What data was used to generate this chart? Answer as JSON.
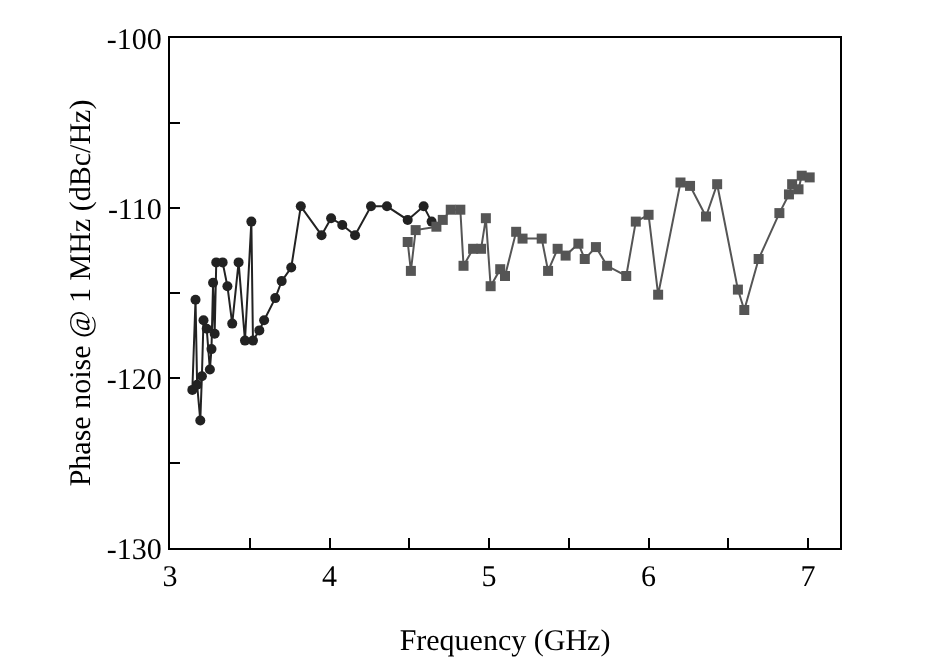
{
  "chart_data": {
    "type": "line",
    "xlabel": "Frequency (GHz)",
    "ylabel": "Phase noise @ 1 MHz (dBc/Hz)",
    "xlim": [
      3,
      7.2
    ],
    "xticks": [
      3,
      {
        "value": 3.5,
        "label": null
      },
      4,
      {
        "value": 4.5,
        "label": null
      },
      5,
      {
        "value": 5.5,
        "label": null
      },
      6,
      {
        "value": 6.5,
        "label": null
      },
      7
    ],
    "ylim": [
      -130,
      -100
    ],
    "yticks": [
      -130,
      {
        "value": -125,
        "label": null
      },
      -120,
      {
        "value": -115,
        "label": null
      },
      -110,
      {
        "value": -105,
        "label": null
      },
      -100
    ],
    "grid": false,
    "line_style": "solid",
    "series": [
      {
        "color": "#222222",
        "marker": "circle",
        "x": [
          3.14,
          3.16,
          3.17,
          3.19,
          3.2,
          3.21,
          3.23,
          3.25,
          3.26,
          3.27,
          3.28,
          3.29,
          3.33,
          3.36,
          3.39,
          3.43,
          3.47,
          3.51,
          3.52,
          3.56,
          3.59,
          3.66,
          3.7,
          3.76,
          3.82,
          3.95,
          4.01,
          4.08,
          4.16,
          4.26,
          4.36,
          4.49,
          4.59,
          4.64
        ],
        "values": [
          -120.7,
          -115.4,
          -120.4,
          -122.5,
          -119.9,
          -116.6,
          -117.1,
          -119.5,
          -118.3,
          -114.4,
          -117.4,
          -113.2,
          -113.2,
          -114.6,
          -116.8,
          -113.2,
          -117.8,
          -110.8,
          -117.8,
          -117.2,
          -116.6,
          -115.3,
          -114.3,
          -113.5,
          -109.9,
          -111.6,
          -110.6,
          -111.0,
          -111.6,
          -109.9,
          -109.9,
          -110.7,
          -109.9,
          -110.8
        ]
      },
      {
        "color": "#555555",
        "marker": "square",
        "x": [
          4.49,
          4.51,
          4.54,
          4.67,
          4.71,
          4.76,
          4.82,
          4.84,
          4.9,
          4.95,
          4.98,
          5.01,
          5.07,
          5.1,
          5.17,
          5.21,
          5.33,
          5.37,
          5.43,
          5.48,
          5.56,
          5.6,
          5.67,
          5.74,
          5.86,
          5.92,
          6.0,
          6.06,
          6.2,
          6.26,
          6.36,
          6.43,
          6.56,
          6.6,
          6.69,
          6.82,
          6.88,
          6.9,
          6.94,
          6.96,
          7.01
        ],
        "values": [
          -112.0,
          -113.7,
          -111.3,
          -111.1,
          -110.7,
          -110.1,
          -110.1,
          -113.4,
          -112.4,
          -112.4,
          -110.6,
          -114.6,
          -113.6,
          -114.0,
          -111.4,
          -111.8,
          -111.8,
          -113.7,
          -112.4,
          -112.8,
          -112.1,
          -113.0,
          -112.3,
          -113.4,
          -114.0,
          -110.8,
          -110.4,
          -115.1,
          -108.5,
          -108.7,
          -110.5,
          -108.6,
          -114.8,
          -116.0,
          -113.0,
          -110.3,
          -109.2,
          -108.6,
          -108.9,
          -108.1,
          -108.2
        ]
      }
    ]
  }
}
